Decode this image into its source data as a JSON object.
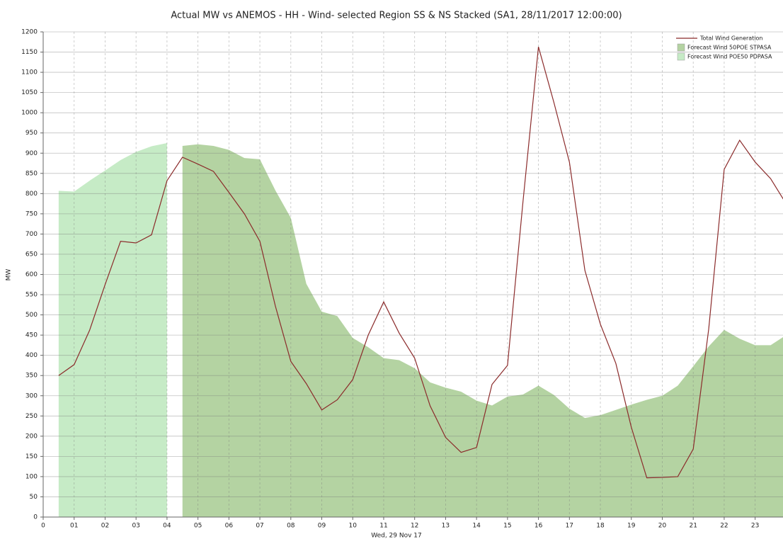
{
  "chart_data": {
    "type": "line-area",
    "title": "Actual MW vs ANEMOS - HH - Wind- selected Region SS & NS Stacked (SA1, 28/11/2017 12:00:00)",
    "x_label": "Wed, 29 Nov 17",
    "y_label": "MW",
    "x": [
      0.5,
      1,
      1.5,
      2,
      2.5,
      3,
      3.5,
      4,
      4.5,
      5,
      5.5,
      6,
      6.5,
      7,
      7.5,
      8,
      8.5,
      9,
      9.5,
      10,
      10.5,
      11,
      11.5,
      12,
      12.5,
      13,
      13.5,
      14,
      14.5,
      15,
      15.5,
      16,
      16.5,
      17,
      17.5,
      18,
      18.5,
      19,
      19.5,
      20,
      20.5,
      21,
      21.5,
      22,
      22.5,
      23,
      23.5,
      24
    ],
    "series": [
      {
        "name": "Total Wind Generation",
        "kind": "line",
        "color": "#8b2b2b",
        "values": [
          350,
          377,
          462,
          575,
          682,
          678,
          698,
          832,
          890,
          873,
          855,
          803,
          750,
          682,
          522,
          385,
          330,
          265,
          290,
          340,
          450,
          532,
          455,
          393,
          275,
          197,
          160,
          172,
          328,
          375,
          780,
          1163,
          1025,
          878,
          610,
          477,
          380,
          222,
          97,
          98,
          100,
          168,
          465,
          860,
          932,
          878,
          837,
          775
        ]
      },
      {
        "name": "Forecast Wind 50POE STPASA",
        "kind": "area",
        "color": "#b4d3a2",
        "values": [
          null,
          null,
          null,
          null,
          null,
          null,
          null,
          null,
          918,
          922,
          918,
          908,
          888,
          885,
          808,
          740,
          577,
          508,
          497,
          443,
          420,
          393,
          388,
          368,
          333,
          320,
          310,
          288,
          276,
          298,
          303,
          325,
          302,
          268,
          245,
          252,
          265,
          278,
          290,
          300,
          325,
          373,
          422,
          463,
          441,
          425,
          425,
          450
        ]
      },
      {
        "name": "Forecast Wind POE50 PDPASA",
        "kind": "area",
        "color": "#c6ebc6",
        "values": [
          807,
          805,
          832,
          857,
          883,
          903,
          917,
          925,
          null,
          null,
          null,
          null,
          null,
          null,
          null,
          null,
          null,
          null,
          null,
          null,
          null,
          null,
          null,
          null,
          null,
          null,
          null,
          null,
          null,
          null,
          null,
          null,
          null,
          null,
          null,
          null,
          null,
          null,
          null,
          null,
          null,
          null,
          null,
          null,
          null,
          null,
          null,
          null
        ]
      }
    ],
    "xlim": [
      0,
      23.9
    ],
    "xticks": [
      0,
      {
        "value": 1,
        "label": "01"
      },
      {
        "value": 2,
        "label": "02"
      },
      {
        "value": 3,
        "label": "03"
      },
      {
        "value": 4,
        "label": "04"
      },
      {
        "value": 5,
        "label": "05"
      },
      {
        "value": 6,
        "label": "06"
      },
      {
        "value": 7,
        "label": "07"
      },
      {
        "value": 8,
        "label": "08"
      },
      {
        "value": 9,
        "label": "09"
      },
      10,
      11,
      12,
      13,
      14,
      15,
      16,
      17,
      18,
      19,
      20,
      21,
      22,
      23
    ],
    "ylim": [
      0,
      1200
    ],
    "yticks": [
      0,
      50,
      100,
      150,
      200,
      250,
      300,
      350,
      400,
      450,
      500,
      550,
      600,
      650,
      700,
      750,
      800,
      850,
      900,
      950,
      1000,
      1050,
      1100,
      1150,
      1200
    ],
    "grid": true,
    "legend": "upper right"
  }
}
